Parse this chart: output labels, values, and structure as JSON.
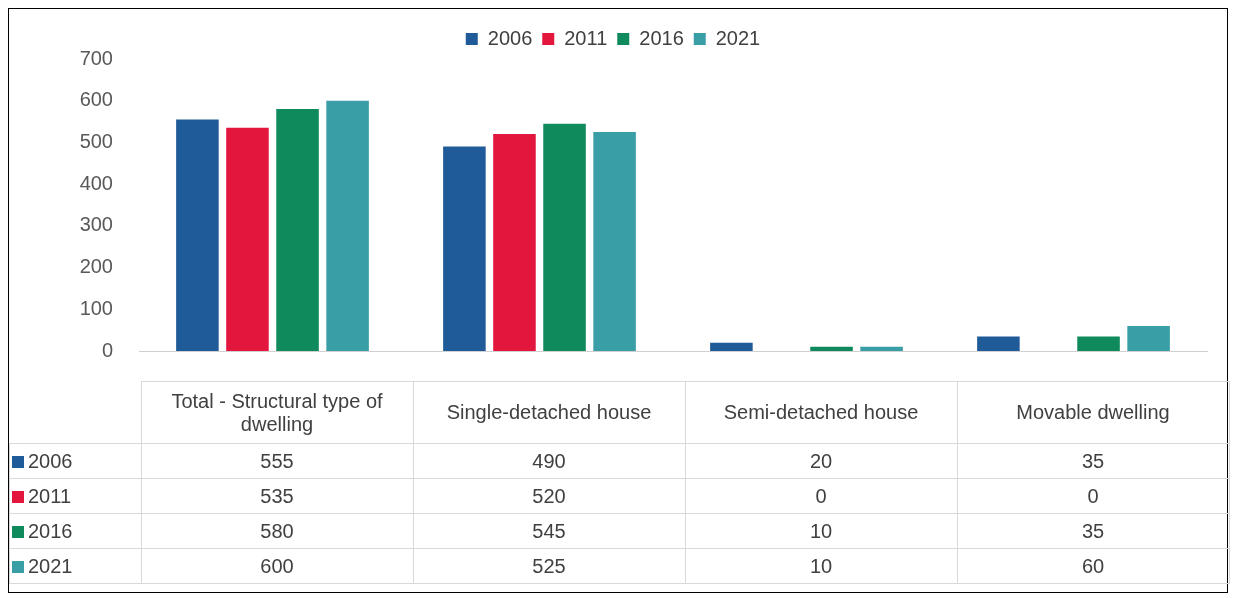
{
  "chart_data": {
    "type": "bar",
    "categories": [
      "Total - Structural type of dwelling",
      "Single-detached house",
      "Semi-detached house",
      "Movable dwelling"
    ],
    "series": [
      {
        "name": "2006",
        "color": "#1f5b98",
        "values": [
          555,
          490,
          20,
          35
        ]
      },
      {
        "name": "2011",
        "color": "#e3173e",
        "values": [
          535,
          520,
          0,
          0
        ]
      },
      {
        "name": "2016",
        "color": "#0e8a5c",
        "values": [
          580,
          545,
          10,
          35
        ]
      },
      {
        "name": "2021",
        "color": "#3a9ea6",
        "values": [
          600,
          525,
          10,
          60
        ]
      }
    ],
    "ylim": [
      0,
      700
    ],
    "yticks": [
      0,
      100,
      200,
      300,
      400,
      500,
      600,
      700
    ],
    "legend": "top",
    "tick_labels": "y",
    "data_labels": true
  }
}
